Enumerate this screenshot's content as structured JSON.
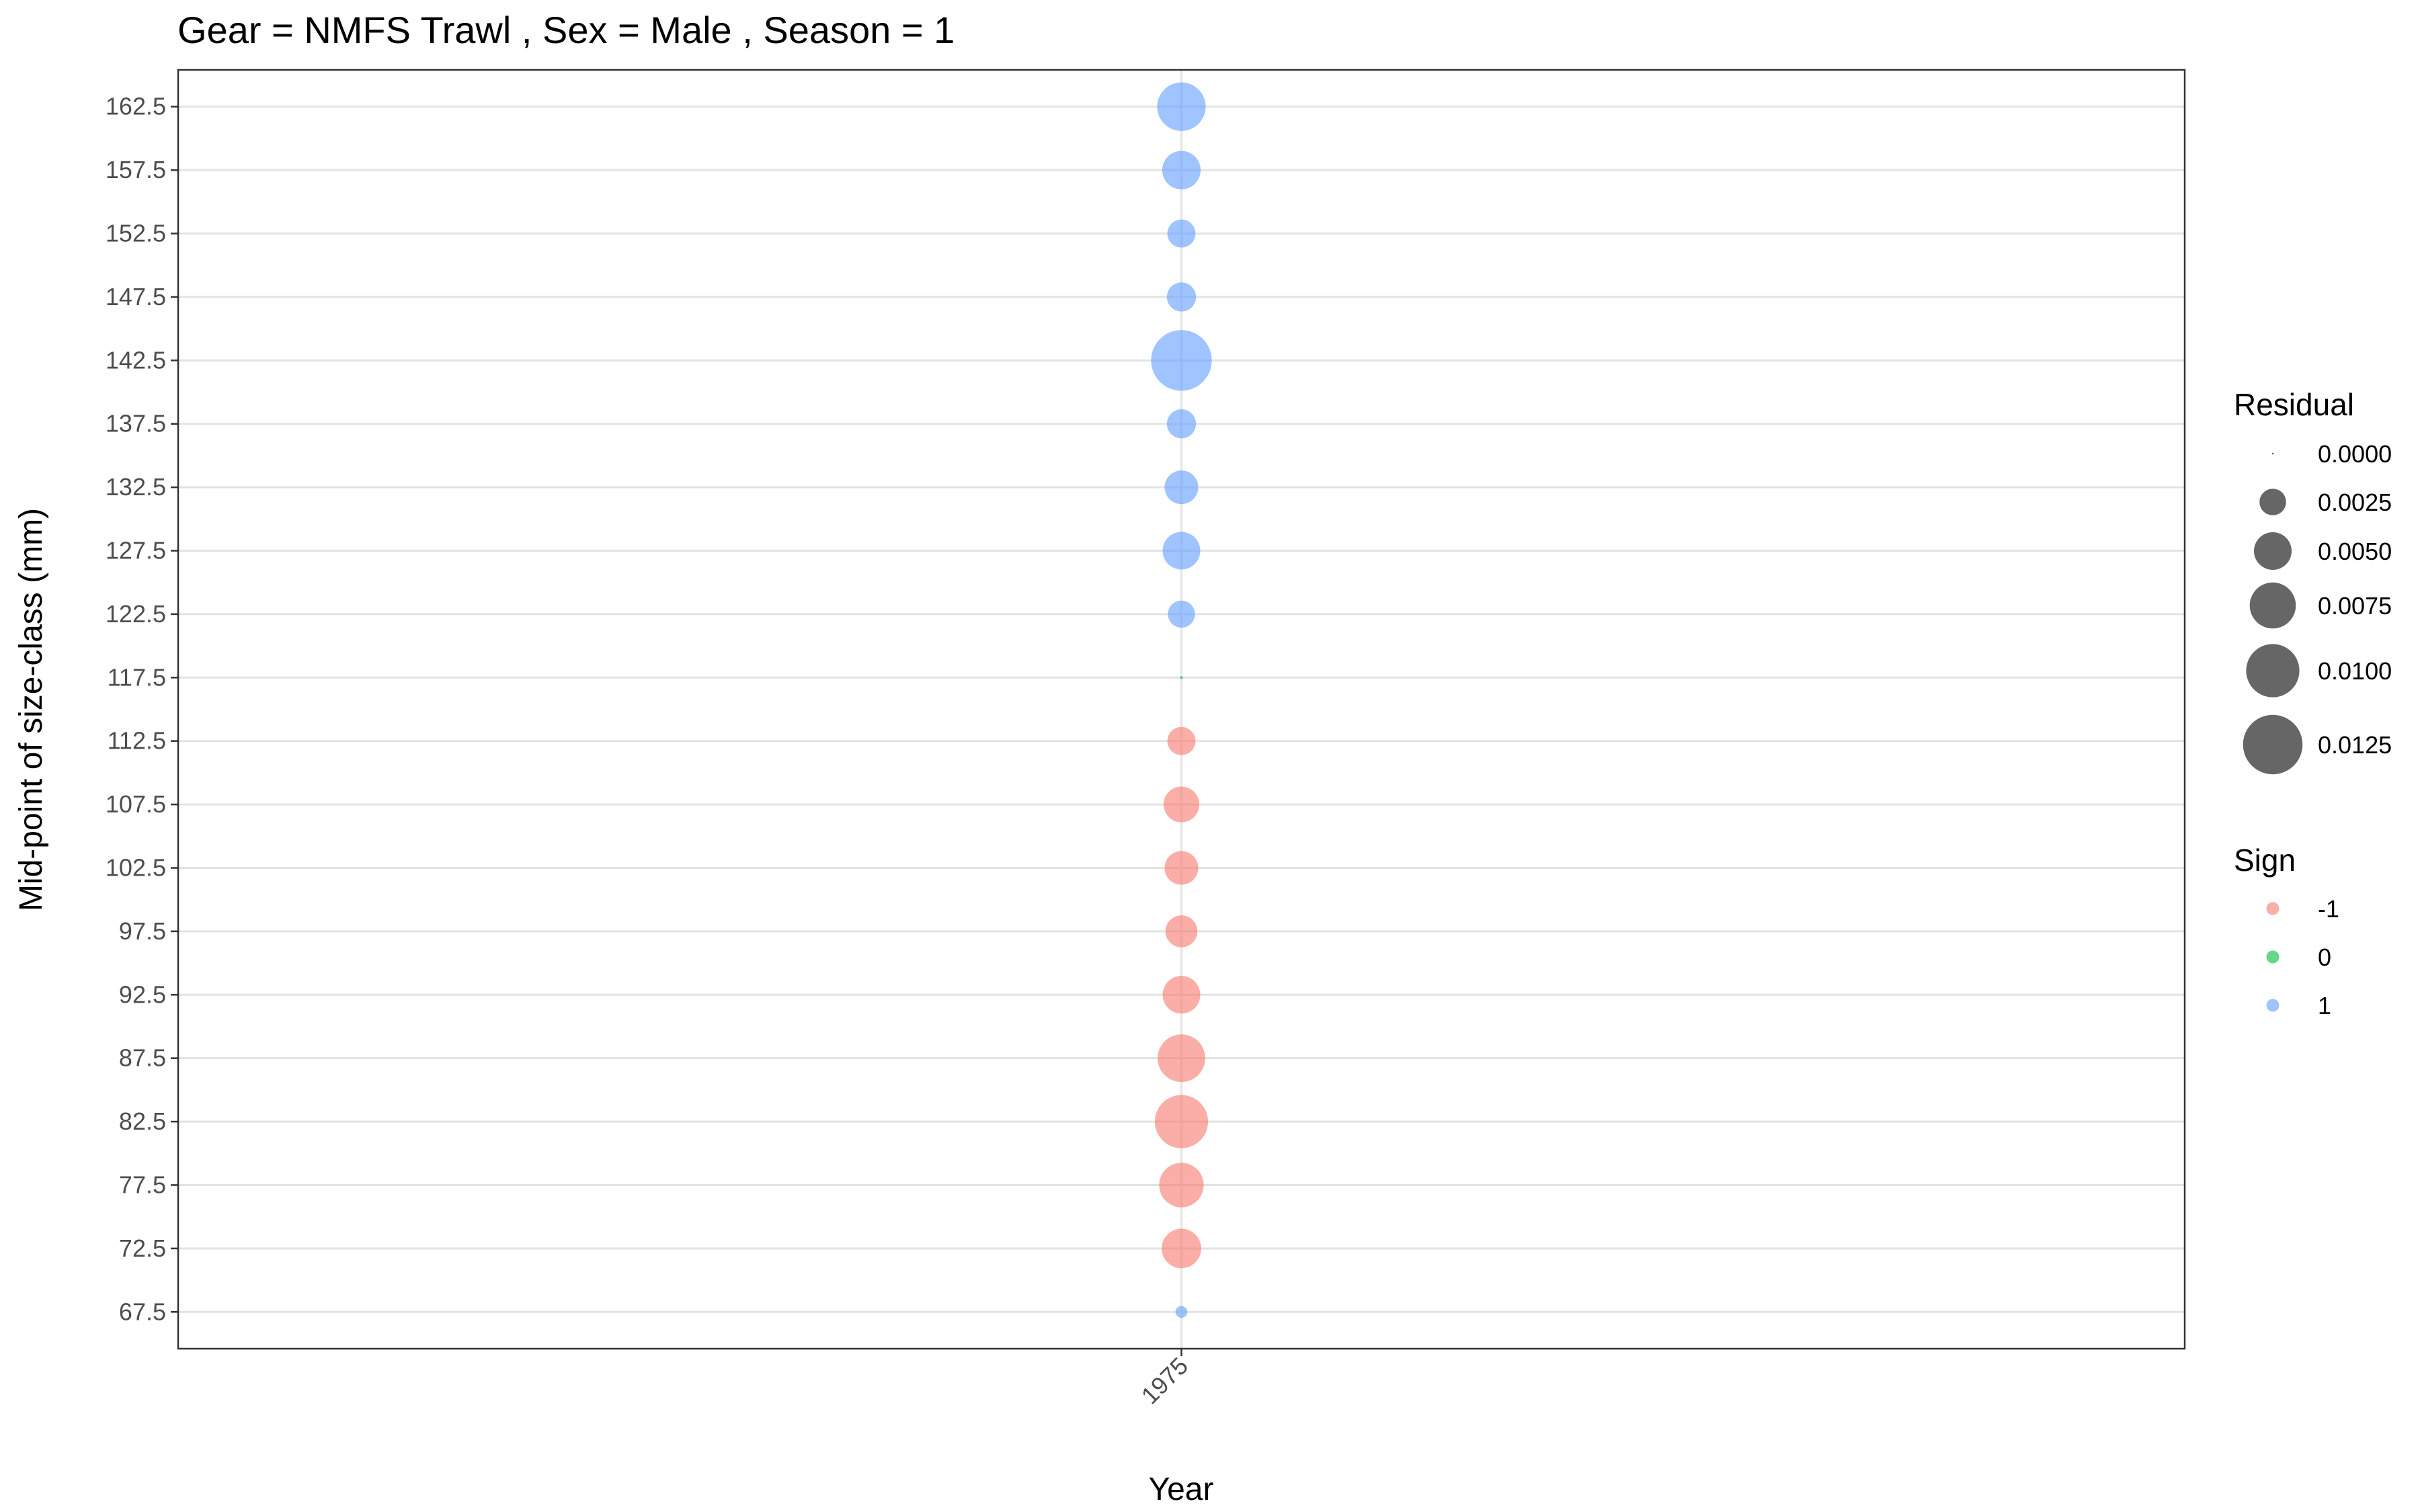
{
  "chart_data": {
    "type": "scatter",
    "title": "Gear = NMFS Trawl , Sex = Male , Season = 1",
    "xlabel": "Year",
    "ylabel": "Mid-point of size-class (mm)",
    "x_categories": [
      "1975"
    ],
    "y_ticks": [
      "67.5",
      "72.5",
      "77.5",
      "82.5",
      "87.5",
      "92.5",
      "97.5",
      "102.5",
      "107.5",
      "112.5",
      "117.5",
      "122.5",
      "127.5",
      "132.5",
      "137.5",
      "142.5",
      "147.5",
      "152.5",
      "157.5",
      "162.5"
    ],
    "ylim": [
      64.6,
      165.4
    ],
    "grid": true,
    "x_axis_tick_rotation": "45 degrees",
    "points": [
      {
        "year": "1975",
        "y": 67.5,
        "residual": 0.0005,
        "sign": "1"
      },
      {
        "year": "1975",
        "y": 72.5,
        "residual": 0.0055,
        "sign": "-1"
      },
      {
        "year": "1975",
        "y": 77.5,
        "residual": 0.007,
        "sign": "-1"
      },
      {
        "year": "1975",
        "y": 82.5,
        "residual": 0.01,
        "sign": "-1"
      },
      {
        "year": "1975",
        "y": 87.5,
        "residual": 0.008,
        "sign": "-1"
      },
      {
        "year": "1975",
        "y": 92.5,
        "residual": 0.005,
        "sign": "-1"
      },
      {
        "year": "1975",
        "y": 97.5,
        "residual": 0.0036,
        "sign": "-1"
      },
      {
        "year": "1975",
        "y": 102.5,
        "residual": 0.004,
        "sign": "-1"
      },
      {
        "year": "1975",
        "y": 107.5,
        "residual": 0.0045,
        "sign": "-1"
      },
      {
        "year": "1975",
        "y": 112.5,
        "residual": 0.0028,
        "sign": "-1"
      },
      {
        "year": "1975",
        "y": 117.5,
        "residual": 0.0,
        "sign": "0"
      },
      {
        "year": "1975",
        "y": 122.5,
        "residual": 0.0026,
        "sign": "1"
      },
      {
        "year": "1975",
        "y": 127.5,
        "residual": 0.005,
        "sign": "1"
      },
      {
        "year": "1975",
        "y": 132.5,
        "residual": 0.004,
        "sign": "1"
      },
      {
        "year": "1975",
        "y": 137.5,
        "residual": 0.003,
        "sign": "1"
      },
      {
        "year": "1975",
        "y": 142.5,
        "residual": 0.013,
        "sign": "1"
      },
      {
        "year": "1975",
        "y": 147.5,
        "residual": 0.003,
        "sign": "1"
      },
      {
        "year": "1975",
        "y": 152.5,
        "residual": 0.0028,
        "sign": "1"
      },
      {
        "year": "1975",
        "y": 157.5,
        "residual": 0.0052,
        "sign": "1"
      },
      {
        "year": "1975",
        "y": 162.5,
        "residual": 0.0083,
        "sign": "1"
      }
    ],
    "legend": {
      "placement": "right",
      "residual": {
        "title": "Residual",
        "values": [
          0.0,
          0.0025,
          0.005,
          0.0075,
          0.01,
          0.0125
        ],
        "labels": [
          "0.0000",
          "0.0025",
          "0.0050",
          "0.0075",
          "0.0100",
          "0.0125"
        ],
        "key_color": "#000000"
      },
      "sign": {
        "title": "Sign",
        "labels": [
          "-1",
          "0",
          "1"
        ]
      }
    },
    "colors": {
      "sign_-1": "#F8766D",
      "sign_0": "#00BA38",
      "sign_1": "#619CFF"
    },
    "point_alpha": 0.6
  }
}
